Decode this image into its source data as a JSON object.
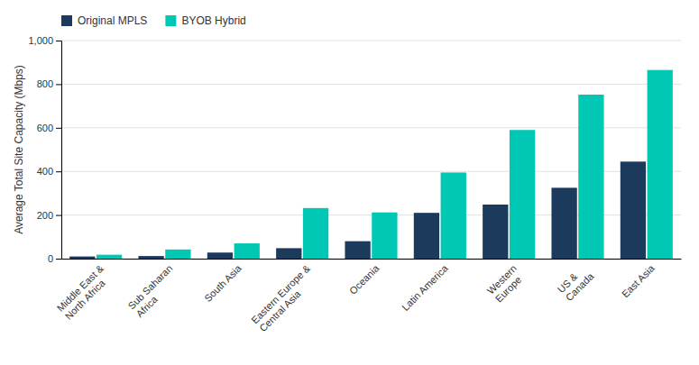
{
  "chart_data": {
    "type": "bar",
    "categories": [
      "Middle East &\nNorth Africa",
      "Sub Saharan\nAfrica",
      "South Asia",
      "Eastern Europe &\nCentral Asia",
      "Oceania",
      "Latin America",
      "Western\nEurope",
      "US &\nCanada",
      "East Asia"
    ],
    "series": [
      {
        "name": "Original MPLS",
        "color": "#1b3a5c",
        "values": [
          10,
          12,
          28,
          48,
          80,
          210,
          248,
          325,
          445
        ]
      },
      {
        "name": "BYOB Hybrid",
        "color": "#00c8b4",
        "values": [
          18,
          42,
          70,
          232,
          212,
          395,
          590,
          752,
          865
        ]
      }
    ],
    "ylabel": "Average Total Site Capacity (Mbps)",
    "ylim": [
      0,
      1000
    ],
    "yticks": [
      0,
      200,
      400,
      600,
      800,
      {
        "value": 1000,
        "label": "1,000"
      }
    ],
    "grid": true,
    "legend": "top-left"
  }
}
